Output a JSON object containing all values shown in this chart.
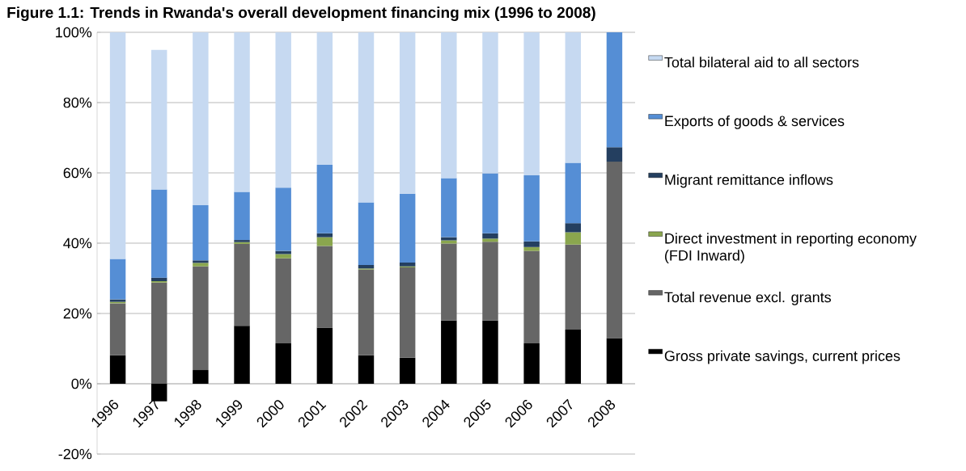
{
  "chart_data": {
    "type": "bar",
    "title": "Figure 1.1: Trends in Rwanda's overall development financing mix (1996 to 2008)",
    "categories": [
      "1996",
      "1997",
      "1998",
      "1999",
      "2000",
      "2001",
      "2002",
      "2003",
      "2004",
      "2005",
      "2006",
      "2007",
      "2008"
    ],
    "stacked": true,
    "series": [
      {
        "name": "Gross private savings, current prices",
        "color": "#000000",
        "values": [
          8.1,
          -5.0,
          3.9,
          16.5,
          11.5,
          16.0,
          8.1,
          7.4,
          18.0,
          18.0,
          11.5,
          15.4,
          13.0
        ]
      },
      {
        "name": "Total revenue excl. grants",
        "color": "#666666",
        "values": [
          14.8,
          28.8,
          29.5,
          23.3,
          24.2,
          23.2,
          24.4,
          25.7,
          21.9,
          22.4,
          26.3,
          24.2,
          50.2
        ]
      },
      {
        "name": "Direct investment in reporting economy (FDI Inward)",
        "color": "#8aa64e",
        "values": [
          0.4,
          0.4,
          1.0,
          0.5,
          1.2,
          2.5,
          0.3,
          0.3,
          0.9,
          0.9,
          1.1,
          3.5,
          0
        ]
      },
      {
        "name": "Migrant remittance inflows",
        "color": "#243f60",
        "values": [
          0.7,
          1.0,
          0.7,
          0.6,
          0.9,
          1.1,
          1.0,
          1.1,
          0.9,
          1.5,
          1.6,
          2.6,
          4.1
        ]
      },
      {
        "name": "Exports of goods & services",
        "color": "#558ed5",
        "values": [
          11.5,
          25.1,
          15.7,
          13.7,
          18.0,
          19.5,
          17.8,
          19.6,
          16.8,
          17.1,
          18.8,
          17.2,
          32.7
        ]
      },
      {
        "name": "Total bilateral aid to all sectors",
        "color": "#c6d9f1",
        "values": [
          64.5,
          39.7,
          49.2,
          45.4,
          44.2,
          37.7,
          48.4,
          45.9,
          41.5,
          40.1,
          40.7,
          37.1,
          0
        ]
      }
    ],
    "ylim": [
      -20,
      100
    ],
    "yticks": [
      {
        "value": -20,
        "label": "-20%"
      },
      {
        "value": 0,
        "label": "0%"
      },
      {
        "value": 20,
        "label": "20%"
      },
      {
        "value": 40,
        "label": "40%"
      },
      {
        "value": 60,
        "label": "60%"
      },
      {
        "value": 80,
        "label": "80%"
      },
      {
        "value": 100,
        "label": "100%"
      }
    ],
    "grid": "y",
    "legend": "right"
  }
}
